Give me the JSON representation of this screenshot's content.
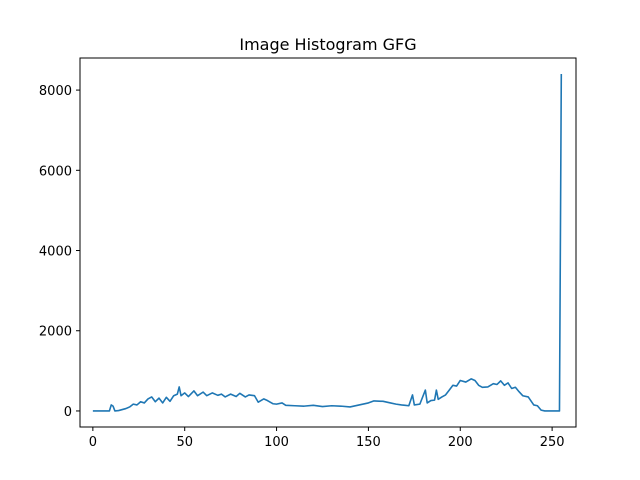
{
  "chart_data": {
    "type": "line",
    "title": "Image Histogram GFG",
    "xlabel": "",
    "ylabel": "",
    "xlim": [
      -7,
      263
    ],
    "ylim": [
      -400,
      8800
    ],
    "xticks": [
      0,
      50,
      100,
      150,
      200,
      250
    ],
    "xtick_labels": [
      "0",
      "50",
      "100",
      "150",
      "200",
      "250"
    ],
    "yticks": [
      0,
      2000,
      4000,
      6000,
      8000
    ],
    "ytick_labels": [
      "0",
      "2000",
      "4000",
      "6000",
      "8000"
    ],
    "grid": false,
    "series_color": "#1f77b4",
    "series": [
      {
        "name": "histogram",
        "points": [
          [
            0,
            0
          ],
          [
            9,
            0
          ],
          [
            10,
            150
          ],
          [
            11,
            120
          ],
          [
            12,
            0
          ],
          [
            14,
            10
          ],
          [
            18,
            60
          ],
          [
            20,
            100
          ],
          [
            22,
            170
          ],
          [
            24,
            150
          ],
          [
            26,
            230
          ],
          [
            28,
            200
          ],
          [
            30,
            300
          ],
          [
            32,
            350
          ],
          [
            34,
            230
          ],
          [
            36,
            320
          ],
          [
            38,
            200
          ],
          [
            40,
            340
          ],
          [
            42,
            240
          ],
          [
            44,
            380
          ],
          [
            46,
            420
          ],
          [
            47,
            600
          ],
          [
            48,
            380
          ],
          [
            50,
            450
          ],
          [
            52,
            360
          ],
          [
            55,
            500
          ],
          [
            57,
            380
          ],
          [
            60,
            470
          ],
          [
            62,
            380
          ],
          [
            65,
            450
          ],
          [
            68,
            390
          ],
          [
            70,
            420
          ],
          [
            72,
            350
          ],
          [
            75,
            420
          ],
          [
            78,
            360
          ],
          [
            80,
            440
          ],
          [
            83,
            350
          ],
          [
            85,
            400
          ],
          [
            88,
            380
          ],
          [
            90,
            220
          ],
          [
            93,
            300
          ],
          [
            95,
            260
          ],
          [
            98,
            180
          ],
          [
            100,
            170
          ],
          [
            103,
            200
          ],
          [
            105,
            140
          ],
          [
            110,
            130
          ],
          [
            115,
            120
          ],
          [
            120,
            140
          ],
          [
            125,
            110
          ],
          [
            130,
            130
          ],
          [
            135,
            120
          ],
          [
            140,
            100
          ],
          [
            145,
            150
          ],
          [
            150,
            200
          ],
          [
            153,
            250
          ],
          [
            158,
            240
          ],
          [
            162,
            200
          ],
          [
            165,
            170
          ],
          [
            168,
            150
          ],
          [
            170,
            140
          ],
          [
            172,
            130
          ],
          [
            174,
            400
          ],
          [
            175,
            150
          ],
          [
            178,
            170
          ],
          [
            181,
            520
          ],
          [
            182,
            200
          ],
          [
            184,
            260
          ],
          [
            186,
            270
          ],
          [
            187,
            520
          ],
          [
            188,
            290
          ],
          [
            190,
            350
          ],
          [
            192,
            400
          ],
          [
            194,
            520
          ],
          [
            196,
            640
          ],
          [
            198,
            620
          ],
          [
            200,
            760
          ],
          [
            203,
            720
          ],
          [
            206,
            800
          ],
          [
            208,
            760
          ],
          [
            210,
            640
          ],
          [
            212,
            590
          ],
          [
            215,
            600
          ],
          [
            218,
            680
          ],
          [
            220,
            660
          ],
          [
            222,
            750
          ],
          [
            224,
            640
          ],
          [
            226,
            700
          ],
          [
            228,
            560
          ],
          [
            230,
            590
          ],
          [
            232,
            480
          ],
          [
            234,
            380
          ],
          [
            237,
            350
          ],
          [
            240,
            150
          ],
          [
            242,
            130
          ],
          [
            244,
            20
          ],
          [
            246,
            0
          ],
          [
            254,
            0
          ],
          [
            255,
            8400
          ]
        ]
      }
    ]
  }
}
